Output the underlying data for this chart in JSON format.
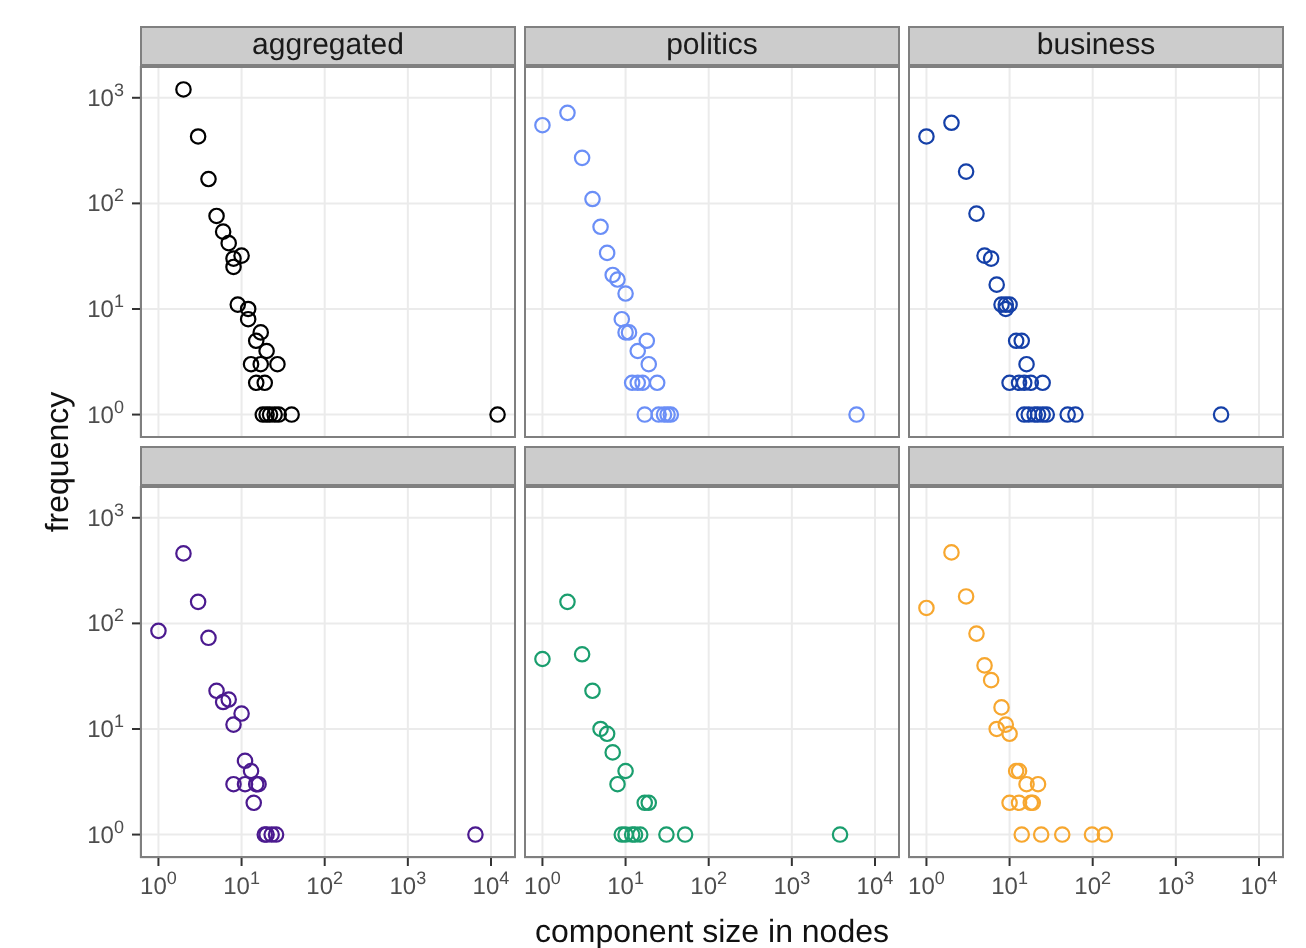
{
  "chart_data": [
    {
      "type": "scatter",
      "title": "aggregated",
      "ylabel": "frequency",
      "tick_labels": "y",
      "marker": "circle",
      "grid": true,
      "color": "#000000",
      "xlim": [
        0.6,
        20000
      ],
      "ylim": [
        0.6,
        2000
      ],
      "log": "xy",
      "xticks": [
        1,
        10,
        100,
        1000,
        10000
      ],
      "yticks": [
        {
          "value": 1,
          "label": "10$^{0}$"
        },
        {
          "value": 10,
          "label": "10$^{1}$"
        },
        {
          "value": 100,
          "label": "10$^{2}$"
        },
        {
          "value": 1000,
          "label": "10$^{3}$"
        }
      ],
      "x": [
        2,
        3,
        4,
        5,
        6,
        7,
        8,
        10,
        8,
        9,
        12,
        12,
        17,
        15,
        20,
        13,
        17,
        27,
        15,
        19,
        18,
        20,
        22,
        25,
        28,
        40,
        12000
      ],
      "values": [
        1200,
        430,
        170,
        76,
        54,
        42,
        30,
        32,
        25,
        11,
        10,
        8,
        6,
        5,
        4,
        3,
        3,
        3,
        2,
        2,
        1,
        1,
        1,
        1,
        1,
        1,
        1
      ]
    },
    {
      "type": "scatter",
      "title": "politics",
      "tick_labels": false,
      "marker": "circle",
      "grid": true,
      "color": "#6b8ff7",
      "xlim": [
        0.6,
        20000
      ],
      "ylim": [
        0.6,
        2000
      ],
      "log": "xy",
      "xticks": [
        1,
        10,
        100,
        1000,
        10000
      ],
      "yticks": [
        1,
        10,
        100,
        1000
      ],
      "x": [
        1,
        2,
        3,
        4,
        5,
        6,
        7,
        8,
        10,
        9,
        10,
        11,
        18,
        14,
        19,
        12,
        14,
        16,
        24,
        17,
        25,
        29,
        32,
        35,
        6000
      ],
      "values": [
        550,
        720,
        270,
        110,
        60,
        34,
        21,
        19,
        14,
        8,
        6,
        6,
        5,
        4,
        3,
        2,
        2,
        2,
        2,
        1,
        1,
        1,
        1,
        1,
        1
      ]
    },
    {
      "type": "scatter",
      "title": "business",
      "tick_labels": false,
      "marker": "circle",
      "grid": true,
      "color": "#1540a8",
      "xlim": [
        0.6,
        20000
      ],
      "ylim": [
        0.6,
        2000
      ],
      "log": "xy",
      "xticks": [
        1,
        10,
        100,
        1000,
        10000
      ],
      "yticks": [
        1,
        10,
        100,
        1000
      ],
      "x": [
        1,
        2,
        3,
        4,
        5,
        6,
        7,
        8,
        9,
        10,
        9,
        12,
        14,
        16,
        10,
        13,
        15,
        18,
        25,
        15,
        17,
        20,
        22,
        25,
        28,
        50,
        62,
        3500
      ],
      "values": [
        430,
        580,
        200,
        80,
        32,
        30,
        17,
        11,
        11,
        11,
        10,
        5,
        5,
        3,
        2,
        2,
        2,
        2,
        2,
        1,
        1,
        1,
        1,
        1,
        1,
        1,
        1,
        1
      ]
    },
    {
      "type": "scatter",
      "marker": "circle",
      "grid": true,
      "color": "#4b1a8f",
      "xlim": [
        0.6,
        20000
      ],
      "ylim": [
        0.6,
        2000
      ],
      "log": "xy",
      "xticks": [
        {
          "value": 1,
          "label": "10$^{0}$"
        },
        {
          "value": 10,
          "label": "10$^{1}$"
        },
        {
          "value": 100,
          "label": "10$^{2}$"
        },
        {
          "value": 1000,
          "label": "10$^{3}$"
        },
        {
          "value": 10000,
          "label": "10$^{4}$"
        }
      ],
      "yticks": [
        {
          "value": 1,
          "label": "10$^{0}$"
        },
        {
          "value": 10,
          "label": "10$^{1}$"
        },
        {
          "value": 100,
          "label": "10$^{2}$"
        },
        {
          "value": 1000,
          "label": "10$^{3}$"
        }
      ],
      "x": [
        2,
        3,
        1,
        4,
        5,
        6,
        7,
        10,
        8,
        11,
        13,
        8,
        11,
        15,
        16,
        14,
        19,
        20,
        23,
        26,
        6500
      ],
      "values": [
        460,
        160,
        85,
        73,
        23,
        18,
        19,
        14,
        11,
        5,
        4,
        3,
        3,
        3,
        3,
        2,
        1,
        1,
        1,
        1,
        1
      ]
    },
    {
      "type": "scatter",
      "xlabel": "component size in nodes",
      "tick_labels": "x",
      "marker": "circle",
      "grid": true,
      "color": "#1a9e6e",
      "xlim": [
        0.6,
        20000
      ],
      "ylim": [
        0.6,
        2000
      ],
      "log": "xy",
      "xticks": [
        {
          "value": 1,
          "label": "10$^{0}$"
        },
        {
          "value": 10,
          "label": "10$^{1}$"
        },
        {
          "value": 100,
          "label": "10$^{2}$"
        },
        {
          "value": 1000,
          "label": "10$^{3}$"
        },
        {
          "value": 10000,
          "label": "10$^{4}$"
        }
      ],
      "yticks": [
        1,
        10,
        100,
        1000
      ],
      "x": [
        2,
        1,
        3,
        4,
        5,
        6,
        7,
        10,
        8,
        17,
        19,
        9,
        10,
        12,
        13,
        15,
        31,
        52,
        3800
      ],
      "values": [
        160,
        46,
        51,
        23,
        10,
        9,
        6,
        4,
        3,
        2,
        2,
        1,
        1,
        1,
        1,
        1,
        1,
        1,
        1
      ]
    },
    {
      "type": "scatter",
      "tick_labels": "x",
      "marker": "circle",
      "grid": true,
      "color": "#f7a72f",
      "xlim": [
        0.6,
        20000
      ],
      "ylim": [
        0.6,
        2000
      ],
      "log": "xy",
      "xticks": [
        {
          "value": 1,
          "label": "10$^{0}$"
        },
        {
          "value": 10,
          "label": "10$^{1}$"
        },
        {
          "value": 100,
          "label": "10$^{2}$"
        },
        {
          "value": 1000,
          "label": "10$^{3}$"
        },
        {
          "value": 10000,
          "label": "10$^{4}$"
        }
      ],
      "yticks": [
        1,
        10,
        100,
        1000
      ],
      "x": [
        2,
        1,
        3,
        4,
        5,
        6,
        8,
        7,
        9,
        10,
        12,
        13,
        16,
        22,
        10,
        13,
        18,
        19,
        14,
        24,
        43,
        98,
        140
      ],
      "values": [
        470,
        140,
        180,
        80,
        40,
        29,
        16,
        10,
        11,
        9,
        4,
        4,
        3,
        3,
        2,
        2,
        2,
        2,
        1,
        1,
        1,
        1,
        1
      ]
    }
  ]
}
